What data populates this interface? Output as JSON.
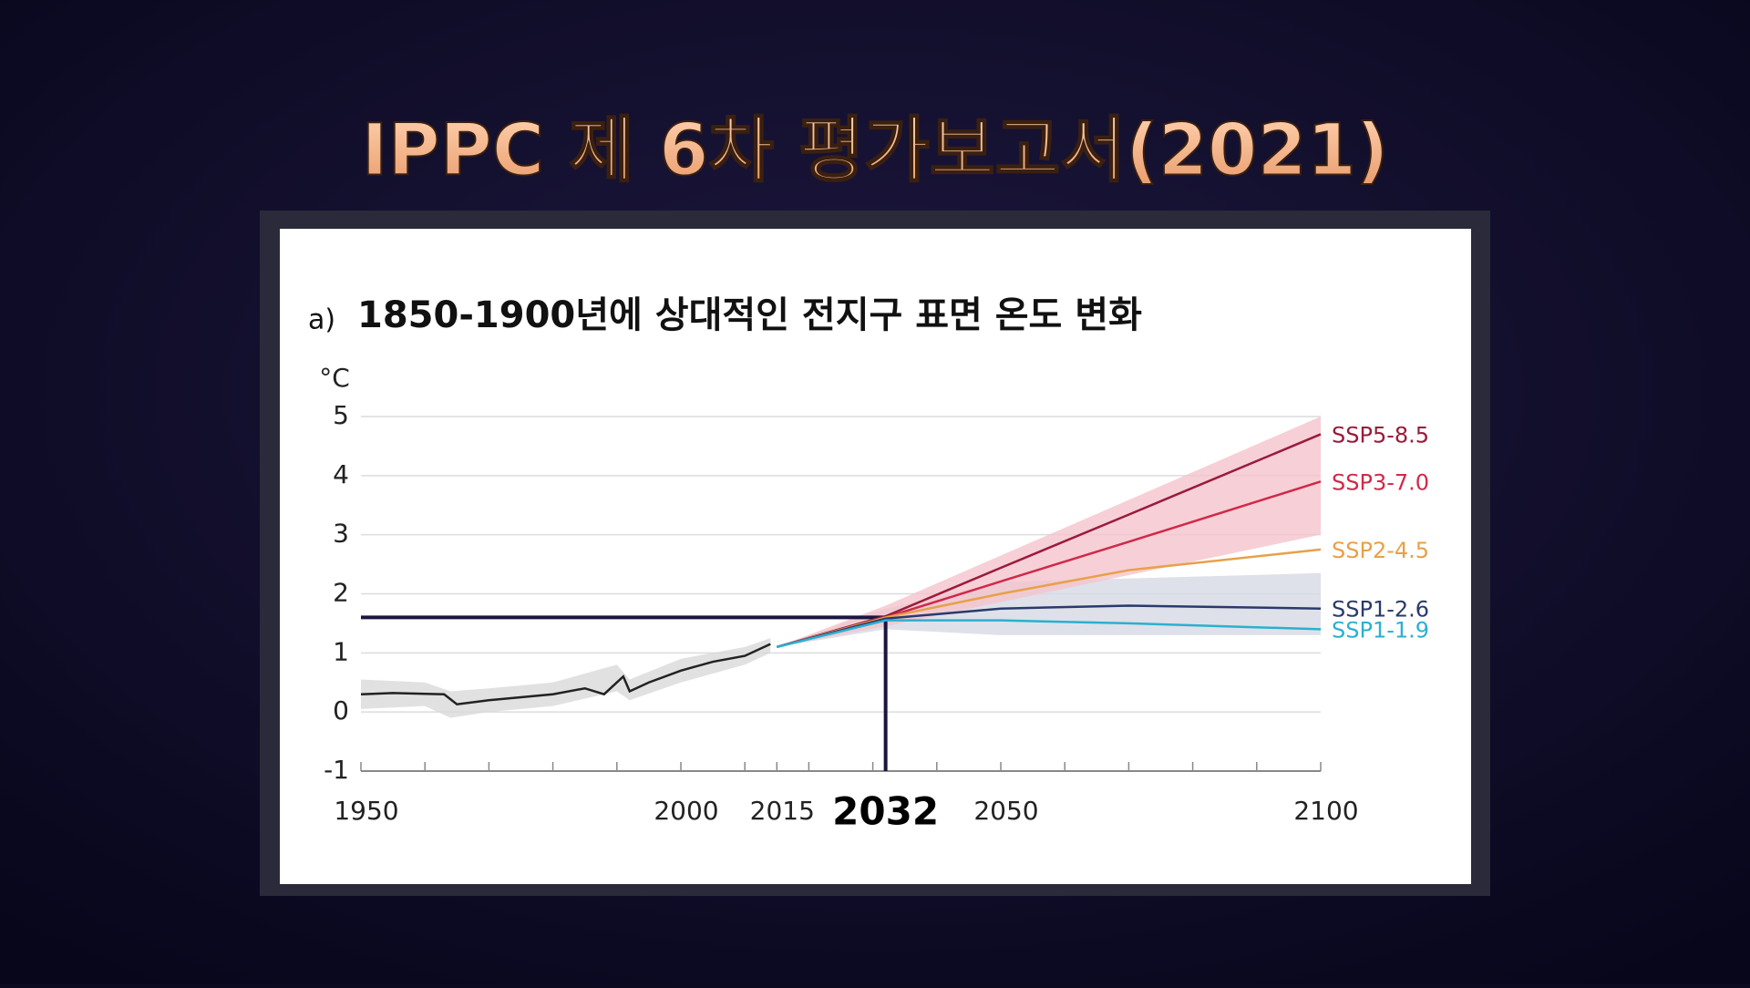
{
  "header": {
    "title": "IPPC 제 6차 평가보고서(2021)"
  },
  "chart_data": {
    "type": "line",
    "panel_label": "a)",
    "title": "1850-1900년에 상대적인 전지구 표면 온도 변화",
    "y_label": "°C",
    "xlim": [
      1950,
      2100
    ],
    "ylim": [
      -1,
      5
    ],
    "xticks": [
      1950,
      2000,
      2015,
      2032,
      2050,
      2100
    ],
    "xminorticks": [
      1960,
      1970,
      1980,
      1990,
      2010,
      2020,
      2030,
      2040,
      2060,
      2070,
      2080,
      2090
    ],
    "yticks": [
      -1,
      0,
      1,
      2,
      3,
      4,
      5
    ],
    "grid": true,
    "crosshair": {
      "x": 2032,
      "y": 1.6,
      "color": "#1a1640"
    },
    "bands": [
      {
        "color": "#d9d9d9",
        "x": [
          1950,
          1960,
          1964,
          1970,
          1980,
          1990,
          1992,
          2000,
          2010,
          2014
        ],
        "lower": [
          0.05,
          0.1,
          -0.1,
          0.0,
          0.1,
          0.35,
          0.2,
          0.5,
          0.8,
          1.0
        ],
        "upper": [
          0.55,
          0.5,
          0.35,
          0.4,
          0.5,
          0.8,
          0.55,
          0.9,
          1.1,
          1.25
        ]
      },
      {
        "color": "#d6d9e4",
        "x": [
          2015,
          2032,
          2050,
          2100
        ],
        "lower": [
          1.1,
          1.4,
          1.3,
          1.3
        ],
        "upper": [
          1.1,
          1.75,
          2.2,
          2.35
        ]
      },
      {
        "color": "#f4c4cc",
        "x": [
          2015,
          2032,
          2100
        ],
        "lower": [
          1.1,
          1.45,
          3.0
        ],
        "upper": [
          1.1,
          1.8,
          5.0
        ]
      }
    ],
    "series": [
      {
        "color": "#222222",
        "x": [
          1950,
          1955,
          1963,
          1965,
          1970,
          1975,
          1980,
          1985,
          1988,
          1991,
          1992,
          1995,
          2000,
          2005,
          2010,
          2014
        ],
        "values": [
          0.3,
          0.32,
          0.3,
          0.13,
          0.2,
          0.25,
          0.3,
          0.4,
          0.3,
          0.6,
          0.35,
          0.5,
          0.7,
          0.85,
          0.95,
          1.15
        ]
      },
      {
        "name": "SSP5-8.5",
        "color": "#9b1a3b",
        "x": [
          2015,
          2032,
          2050,
          2070,
          2100
        ],
        "values": [
          1.1,
          1.62,
          2.44,
          3.34,
          4.7
        ]
      },
      {
        "name": "SSP3-7.0",
        "color": "#d0294a",
        "x": [
          2015,
          2032,
          2050,
          2070,
          2100
        ],
        "values": [
          1.1,
          1.6,
          2.21,
          2.88,
          3.9
        ]
      },
      {
        "name": "SSP2-4.5",
        "color": "#e8a04a",
        "x": [
          2015,
          2032,
          2050,
          2070,
          2100
        ],
        "values": [
          1.1,
          1.6,
          2.0,
          2.4,
          2.75
        ]
      },
      {
        "name": "SSP1-2.6",
        "color": "#2a3a6a",
        "x": [
          2015,
          2032,
          2050,
          2070,
          2100
        ],
        "values": [
          1.1,
          1.58,
          1.75,
          1.8,
          1.75
        ]
      },
      {
        "name": "SSP1-1.9",
        "color": "#2ab0d0",
        "x": [
          2015,
          2032,
          2050,
          2070,
          2100
        ],
        "values": [
          1.1,
          1.55,
          1.55,
          1.5,
          1.4
        ]
      }
    ]
  }
}
